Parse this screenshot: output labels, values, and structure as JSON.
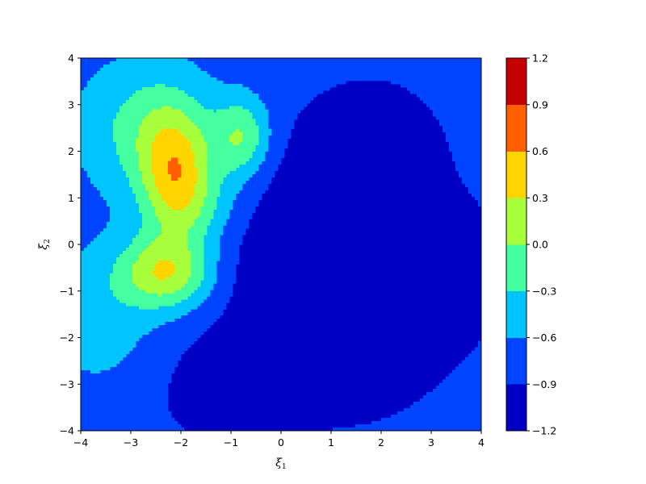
{
  "chart_data": {
    "type": "contour",
    "xlabel": "ξ",
    "xlabel_sub": "1",
    "ylabel": "ξ",
    "ylabel_sub": "2",
    "xlim": [
      -4,
      4
    ],
    "ylim": [
      -4,
      4
    ],
    "x_ticks": [
      -4,
      -3,
      -2,
      -1,
      0,
      1,
      2,
      3,
      4
    ],
    "y_ticks": [
      -4,
      -3,
      -2,
      -1,
      0,
      1,
      2,
      3,
      4
    ],
    "x_tick_labels": [
      "−4",
      "−3",
      "−2",
      "−1",
      "0",
      "1",
      "2",
      "3",
      "4"
    ],
    "y_tick_labels": [
      "−4",
      "−3",
      "−2",
      "−1",
      "0",
      "1",
      "2",
      "3",
      "4"
    ],
    "colormap": "jet",
    "contour_levels": [
      -1.2,
      -0.9,
      -0.6,
      -0.3,
      0.0,
      0.3,
      0.6,
      0.9,
      1.2
    ],
    "colorbar_tick_labels": [
      "−1.2",
      "−0.9",
      "−0.6",
      "−0.3",
      "0.0",
      "0.3",
      "0.6",
      "0.9",
      "1.2"
    ],
    "band_colors": [
      "#0000c4",
      "#0044ff",
      "#00c4ff",
      "#44ff9f",
      "#a8ff3c",
      "#ffd500",
      "#ff5f00",
      "#c40000"
    ],
    "field": {
      "base": -0.75,
      "peaks": [
        {
          "x": -2.1,
          "y": 1.5,
          "amp": 1.05,
          "sx": 0.5,
          "sy": 0.95
        },
        {
          "x": -0.8,
          "y": 2.3,
          "amp": 0.75,
          "sx": 0.4,
          "sy": 0.6
        },
        {
          "x": -1.5,
          "y": 0.8,
          "amp": 0.3,
          "sx": 0.6,
          "sy": 0.6
        },
        {
          "x": -2.3,
          "y": -0.6,
          "amp": 1.0,
          "sx": 0.65,
          "sy": 0.55
        },
        {
          "x": -2.7,
          "y": 2.5,
          "amp": 0.55,
          "sx": 0.9,
          "sy": 1.0
        },
        {
          "x": -3.6,
          "y": -1.5,
          "amp": 0.3,
          "sx": 0.8,
          "sy": 1.1
        }
      ],
      "troughs": [
        {
          "x": 1.2,
          "y": -0.7,
          "amp": 0.62,
          "sx": 1.6,
          "sy": 1.9
        },
        {
          "x": 1.8,
          "y": 2.2,
          "amp": 0.42,
          "sx": 0.8,
          "sy": 0.8
        },
        {
          "x": -1.2,
          "y": -3.2,
          "amp": 0.3,
          "sx": 0.9,
          "sy": 0.8
        },
        {
          "x": 3.0,
          "y": -0.6,
          "amp": 0.35,
          "sx": 0.8,
          "sy": 0.9
        }
      ]
    }
  }
}
